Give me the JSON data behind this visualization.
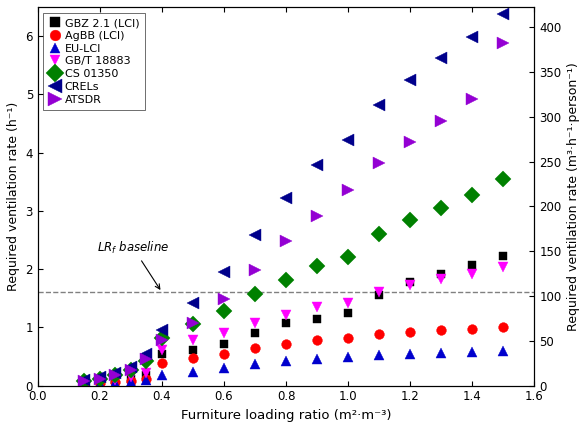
{
  "title": "",
  "xlabel": "Furniture loading ratio (m²·m⁻³)",
  "ylabel_left": "Required ventilation rate (h⁻¹)",
  "ylabel_right": "Required ventilation rate (m³·h⁻¹·person⁻¹)",
  "xlim": [
    0.0,
    1.6
  ],
  "ylim_left": [
    0.0,
    6.5
  ],
  "ylim_right": [
    0,
    422.5
  ],
  "xticks": [
    0.0,
    0.2,
    0.4,
    0.6,
    0.8,
    1.0,
    1.2,
    1.4,
    1.6
  ],
  "yticks_left": [
    0.0,
    1.0,
    2.0,
    3.0,
    4.0,
    5.0,
    6.0
  ],
  "yticks_right": [
    0,
    50,
    100,
    150,
    200,
    250,
    300,
    350,
    400
  ],
  "baseline_y": 1.6,
  "figsize": [
    5.87,
    4.29
  ],
  "dpi": 100,
  "series": {
    "GBZ 2.1 (LCI)": {
      "color": "#000000",
      "marker": "s",
      "x": [
        0.15,
        0.2,
        0.25,
        0.3,
        0.35,
        0.4,
        0.5,
        0.6,
        0.7,
        0.8,
        0.9,
        1.0,
        1.1,
        1.2,
        1.3,
        1.4,
        1.5
      ],
      "y": [
        0.04,
        0.06,
        0.09,
        0.12,
        0.18,
        0.55,
        0.62,
        0.72,
        0.9,
        1.08,
        1.15,
        1.25,
        1.55,
        1.78,
        1.92,
        2.07,
        2.22
      ]
    },
    "AgBB (LCI)": {
      "color": "#ff0000",
      "marker": "o",
      "x": [
        0.15,
        0.2,
        0.25,
        0.3,
        0.35,
        0.4,
        0.5,
        0.6,
        0.7,
        0.8,
        0.9,
        1.0,
        1.1,
        1.2,
        1.3,
        1.4,
        1.5
      ],
      "y": [
        0.03,
        0.04,
        0.06,
        0.08,
        0.12,
        0.38,
        0.47,
        0.55,
        0.65,
        0.72,
        0.78,
        0.82,
        0.88,
        0.92,
        0.95,
        0.98,
        1.0
      ]
    },
    "EU-LCI": {
      "color": "#0000cd",
      "marker": "^",
      "x": [
        0.15,
        0.2,
        0.25,
        0.3,
        0.35,
        0.4,
        0.5,
        0.6,
        0.7,
        0.8,
        0.9,
        1.0,
        1.1,
        1.2,
        1.3,
        1.4,
        1.5
      ],
      "y": [
        0.02,
        0.03,
        0.04,
        0.06,
        0.09,
        0.18,
        0.24,
        0.3,
        0.37,
        0.42,
        0.46,
        0.49,
        0.52,
        0.54,
        0.56,
        0.58,
        0.6
      ]
    },
    "GB/T 18883": {
      "color": "#ff00ff",
      "marker": "v",
      "x": [
        0.15,
        0.2,
        0.25,
        0.3,
        0.35,
        0.4,
        0.5,
        0.6,
        0.7,
        0.8,
        0.9,
        1.0,
        1.1,
        1.2,
        1.3,
        1.4,
        1.5
      ],
      "y": [
        0.05,
        0.07,
        0.1,
        0.14,
        0.22,
        0.62,
        0.78,
        0.9,
        1.07,
        1.22,
        1.35,
        1.42,
        1.6,
        1.72,
        1.83,
        1.92,
        2.03
      ]
    },
    "CS 01350": {
      "color": "#008000",
      "marker": "D",
      "x": [
        0.15,
        0.2,
        0.25,
        0.3,
        0.35,
        0.4,
        0.5,
        0.6,
        0.7,
        0.8,
        0.9,
        1.0,
        1.1,
        1.2,
        1.3,
        1.4,
        1.5
      ],
      "y": [
        0.08,
        0.12,
        0.18,
        0.26,
        0.42,
        0.82,
        1.05,
        1.28,
        1.58,
        1.82,
        2.05,
        2.2,
        2.6,
        2.85,
        3.05,
        3.28,
        3.55
      ]
    },
    "CRELs": {
      "color": "#00008b",
      "marker": "<",
      "x": [
        0.15,
        0.2,
        0.25,
        0.3,
        0.35,
        0.4,
        0.5,
        0.6,
        0.7,
        0.8,
        0.9,
        1.0,
        1.1,
        1.2,
        1.3,
        1.4,
        1.5
      ],
      "y": [
        0.1,
        0.15,
        0.22,
        0.32,
        0.55,
        0.95,
        1.42,
        1.95,
        2.58,
        3.22,
        3.78,
        4.22,
        4.82,
        5.25,
        5.62,
        5.98,
        6.38
      ]
    },
    "ATSDR": {
      "color": "#9400d3",
      "marker": ">",
      "x": [
        0.15,
        0.2,
        0.25,
        0.3,
        0.35,
        0.4,
        0.5,
        0.6,
        0.7,
        0.8,
        0.9,
        1.0,
        1.1,
        1.2,
        1.3,
        1.4,
        1.5
      ],
      "y": [
        0.08,
        0.12,
        0.18,
        0.27,
        0.45,
        0.78,
        1.08,
        1.48,
        1.98,
        2.48,
        2.92,
        3.35,
        3.82,
        4.18,
        4.55,
        4.92,
        5.88
      ]
    }
  }
}
